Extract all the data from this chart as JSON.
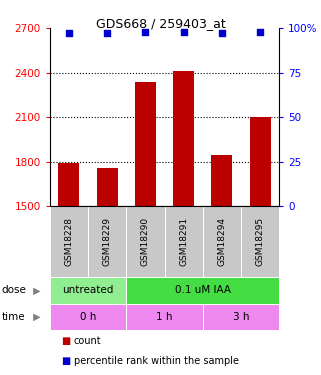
{
  "title": "GDS668 / 259403_at",
  "samples": [
    "GSM18228",
    "GSM18229",
    "GSM18290",
    "GSM18291",
    "GSM18294",
    "GSM18295"
  ],
  "bar_values": [
    1795,
    1760,
    2340,
    2410,
    1845,
    2105
  ],
  "percentile_values": [
    97,
    97,
    98,
    98,
    97,
    98
  ],
  "bar_color": "#bb0000",
  "dot_color": "#0000cc",
  "ylim_left": [
    1500,
    2700
  ],
  "ylim_right": [
    0,
    100
  ],
  "yticks_left": [
    1500,
    1800,
    2100,
    2400,
    2700
  ],
  "yticks_right": [
    0,
    25,
    50,
    75,
    100
  ],
  "ytick_labels_right": [
    "0",
    "25",
    "50",
    "75",
    "100%"
  ],
  "grid_values": [
    1800,
    2100,
    2400
  ],
  "dose_labels": [
    {
      "text": "untreated",
      "start": 0,
      "end": 2,
      "color": "#90ee90"
    },
    {
      "text": "0.1 uM IAA",
      "start": 2,
      "end": 6,
      "color": "#44dd44"
    }
  ],
  "time_labels": [
    {
      "text": "0 h",
      "start": 0,
      "end": 2,
      "color": "#ee88ee"
    },
    {
      "text": "1 h",
      "start": 2,
      "end": 4,
      "color": "#ee88ee"
    },
    {
      "text": "3 h",
      "start": 4,
      "end": 6,
      "color": "#ee88ee"
    }
  ],
  "bar_width": 0.55,
  "tick_area_color": "#c8c8c8",
  "legend_red_label": "count",
  "legend_blue_label": "percentile rank within the sample",
  "dose_arrow_label": "dose",
  "time_arrow_label": "time"
}
